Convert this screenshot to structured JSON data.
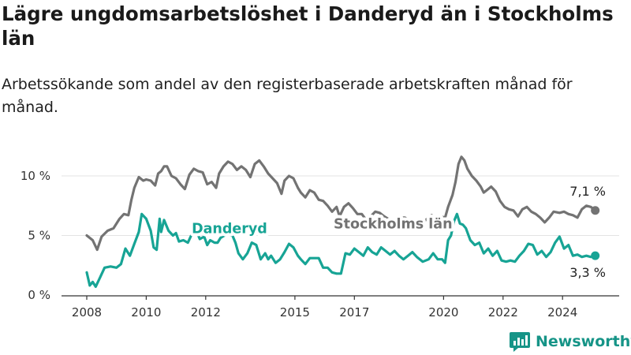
{
  "title": "Lägre ungdomsarbetslöshet i Danderyd än i Stockholms län",
  "subtitle": "Arbetssökande som andel av den registerbaserade arbetskraften månad för månad.",
  "brand": "Newsworthy",
  "colors": {
    "stockholm": "#737373",
    "danderyd": "#17a495",
    "grid": "#e3e3e3",
    "axis": "#333333"
  },
  "chart_data": {
    "type": "line",
    "x_unit": "year",
    "xlim": [
      2008,
      2025.5
    ],
    "ylim": [
      0,
      10
    ],
    "yticks": [
      {
        "v": 0,
        "label": "0 %"
      },
      {
        "v": 5,
        "label": "5 %"
      },
      {
        "v": 10,
        "label": "10 %"
      }
    ],
    "xticks": [
      {
        "v": 2008,
        "label": "2008"
      },
      {
        "v": 2010,
        "label": "2010"
      },
      {
        "v": 2012,
        "label": "2012"
      },
      {
        "v": 2015,
        "label": "2015"
      },
      {
        "v": 2017,
        "label": "2017"
      },
      {
        "v": 2020,
        "label": "2020"
      },
      {
        "v": 2022,
        "label": "2022"
      },
      {
        "v": 2024,
        "label": "2024"
      }
    ],
    "grid": true,
    "series": [
      {
        "name": "Stockholms län",
        "key": "stockholm",
        "end_label": "7,1 %",
        "points": [
          [
            2008.0,
            5.0
          ],
          [
            2008.2,
            4.6
          ],
          [
            2008.35,
            3.8
          ],
          [
            2008.5,
            4.9
          ],
          [
            2008.7,
            5.4
          ],
          [
            2008.9,
            5.6
          ],
          [
            2009.1,
            6.4
          ],
          [
            2009.25,
            6.8
          ],
          [
            2009.4,
            6.7
          ],
          [
            2009.5,
            8.0
          ],
          [
            2009.6,
            9.0
          ],
          [
            2009.75,
            9.9
          ],
          [
            2009.9,
            9.6
          ],
          [
            2010.0,
            9.7
          ],
          [
            2010.15,
            9.6
          ],
          [
            2010.3,
            9.2
          ],
          [
            2010.4,
            10.2
          ],
          [
            2010.5,
            10.4
          ],
          [
            2010.6,
            10.8
          ],
          [
            2010.7,
            10.8
          ],
          [
            2010.85,
            10.0
          ],
          [
            2011.0,
            9.8
          ],
          [
            2011.15,
            9.3
          ],
          [
            2011.3,
            8.9
          ],
          [
            2011.45,
            10.1
          ],
          [
            2011.6,
            10.6
          ],
          [
            2011.75,
            10.4
          ],
          [
            2011.9,
            10.3
          ],
          [
            2012.05,
            9.3
          ],
          [
            2012.2,
            9.5
          ],
          [
            2012.35,
            9.0
          ],
          [
            2012.45,
            10.2
          ],
          [
            2012.6,
            10.8
          ],
          [
            2012.75,
            11.2
          ],
          [
            2012.9,
            11.0
          ],
          [
            2013.05,
            10.5
          ],
          [
            2013.2,
            10.8
          ],
          [
            2013.35,
            10.5
          ],
          [
            2013.5,
            9.9
          ],
          [
            2013.65,
            11.0
          ],
          [
            2013.8,
            11.3
          ],
          [
            2013.95,
            10.8
          ],
          [
            2014.1,
            10.2
          ],
          [
            2014.25,
            9.8
          ],
          [
            2014.4,
            9.4
          ],
          [
            2014.55,
            8.5
          ],
          [
            2014.65,
            9.6
          ],
          [
            2014.8,
            10.0
          ],
          [
            2014.95,
            9.8
          ],
          [
            2015.1,
            9.0
          ],
          [
            2015.2,
            8.6
          ],
          [
            2015.35,
            8.2
          ],
          [
            2015.5,
            8.8
          ],
          [
            2015.65,
            8.6
          ],
          [
            2015.8,
            8.0
          ],
          [
            2015.95,
            7.9
          ],
          [
            2016.1,
            7.5
          ],
          [
            2016.25,
            7.0
          ],
          [
            2016.4,
            7.4
          ],
          [
            2016.5,
            6.6
          ],
          [
            2016.65,
            7.4
          ],
          [
            2016.8,
            7.7
          ],
          [
            2016.95,
            7.3
          ],
          [
            2017.1,
            6.8
          ],
          [
            2017.25,
            6.8
          ],
          [
            2017.4,
            6.3
          ],
          [
            2017.55,
            6.6
          ],
          [
            2017.7,
            7.0
          ],
          [
            2017.85,
            6.9
          ],
          [
            2018.0,
            6.6
          ],
          [
            2018.2,
            6.3
          ],
          [
            2018.4,
            6.0
          ],
          [
            2018.55,
            6.5
          ],
          [
            2018.7,
            6.5
          ],
          [
            2018.85,
            6.3
          ],
          [
            2019.0,
            5.8
          ],
          [
            2019.2,
            6.1
          ],
          [
            2019.4,
            6.3
          ],
          [
            2019.6,
            6.7
          ],
          [
            2019.75,
            6.2
          ],
          [
            2019.9,
            6.6
          ],
          [
            2020.05,
            6.5
          ],
          [
            2020.15,
            7.4
          ],
          [
            2020.3,
            8.4
          ],
          [
            2020.4,
            9.5
          ],
          [
            2020.5,
            11.0
          ],
          [
            2020.6,
            11.6
          ],
          [
            2020.7,
            11.3
          ],
          [
            2020.8,
            10.6
          ],
          [
            2020.95,
            10.0
          ],
          [
            2021.1,
            9.6
          ],
          [
            2021.25,
            9.1
          ],
          [
            2021.35,
            8.6
          ],
          [
            2021.5,
            8.9
          ],
          [
            2021.6,
            9.1
          ],
          [
            2021.75,
            8.7
          ],
          [
            2021.9,
            7.9
          ],
          [
            2022.05,
            7.4
          ],
          [
            2022.2,
            7.2
          ],
          [
            2022.35,
            7.1
          ],
          [
            2022.5,
            6.6
          ],
          [
            2022.65,
            7.2
          ],
          [
            2022.8,
            7.4
          ],
          [
            2022.95,
            7.0
          ],
          [
            2023.1,
            6.8
          ],
          [
            2023.25,
            6.5
          ],
          [
            2023.4,
            6.1
          ],
          [
            2023.55,
            6.5
          ],
          [
            2023.7,
            7.0
          ],
          [
            2023.9,
            6.9
          ],
          [
            2024.05,
            7.0
          ],
          [
            2024.2,
            6.8
          ],
          [
            2024.35,
            6.7
          ],
          [
            2024.5,
            6.5
          ],
          [
            2024.65,
            7.2
          ],
          [
            2024.8,
            7.5
          ],
          [
            2024.95,
            7.4
          ],
          [
            2025.1,
            7.1
          ]
        ]
      },
      {
        "name": "Danderyd",
        "key": "danderyd",
        "end_label": "3,3 %",
        "points": [
          [
            2008.0,
            1.9
          ],
          [
            2008.1,
            0.8
          ],
          [
            2008.2,
            1.1
          ],
          [
            2008.3,
            0.7
          ],
          [
            2008.45,
            1.5
          ],
          [
            2008.6,
            2.3
          ],
          [
            2008.8,
            2.4
          ],
          [
            2009.0,
            2.3
          ],
          [
            2009.15,
            2.6
          ],
          [
            2009.3,
            3.9
          ],
          [
            2009.45,
            3.3
          ],
          [
            2009.6,
            4.3
          ],
          [
            2009.75,
            5.3
          ],
          [
            2009.85,
            6.8
          ],
          [
            2010.0,
            6.4
          ],
          [
            2010.15,
            5.4
          ],
          [
            2010.25,
            4.0
          ],
          [
            2010.35,
            3.8
          ],
          [
            2010.45,
            6.4
          ],
          [
            2010.5,
            5.3
          ],
          [
            2010.6,
            6.3
          ],
          [
            2010.75,
            5.4
          ],
          [
            2010.9,
            5.0
          ],
          [
            2011.0,
            5.2
          ],
          [
            2011.1,
            4.5
          ],
          [
            2011.25,
            4.6
          ],
          [
            2011.4,
            4.4
          ],
          [
            2011.55,
            5.2
          ],
          [
            2011.7,
            5.3
          ],
          [
            2011.8,
            4.7
          ],
          [
            2011.95,
            4.9
          ],
          [
            2012.05,
            4.2
          ],
          [
            2012.15,
            4.6
          ],
          [
            2012.3,
            4.4
          ],
          [
            2012.4,
            4.4
          ],
          [
            2012.5,
            4.8
          ],
          [
            2012.7,
            5.1
          ],
          [
            2012.9,
            5.0
          ],
          [
            2013.0,
            4.4
          ],
          [
            2013.1,
            3.5
          ],
          [
            2013.25,
            3.0
          ],
          [
            2013.4,
            3.5
          ],
          [
            2013.55,
            4.4
          ],
          [
            2013.7,
            4.2
          ],
          [
            2013.85,
            3.0
          ],
          [
            2014.0,
            3.5
          ],
          [
            2014.1,
            3.0
          ],
          [
            2014.2,
            3.3
          ],
          [
            2014.35,
            2.7
          ],
          [
            2014.5,
            3.0
          ],
          [
            2014.65,
            3.6
          ],
          [
            2014.8,
            4.3
          ],
          [
            2014.95,
            4.0
          ],
          [
            2015.1,
            3.3
          ],
          [
            2015.2,
            3.0
          ],
          [
            2015.35,
            2.6
          ],
          [
            2015.5,
            3.1
          ],
          [
            2015.65,
            3.1
          ],
          [
            2015.8,
            3.1
          ],
          [
            2015.95,
            2.3
          ],
          [
            2016.1,
            2.3
          ],
          [
            2016.25,
            1.9
          ],
          [
            2016.4,
            1.8
          ],
          [
            2016.55,
            1.8
          ],
          [
            2016.7,
            3.5
          ],
          [
            2016.85,
            3.4
          ],
          [
            2017.0,
            3.9
          ],
          [
            2017.15,
            3.6
          ],
          [
            2017.3,
            3.3
          ],
          [
            2017.45,
            4.0
          ],
          [
            2017.6,
            3.6
          ],
          [
            2017.75,
            3.4
          ],
          [
            2017.9,
            4.0
          ],
          [
            2018.05,
            3.7
          ],
          [
            2018.2,
            3.4
          ],
          [
            2018.35,
            3.7
          ],
          [
            2018.5,
            3.3
          ],
          [
            2018.65,
            3.0
          ],
          [
            2018.8,
            3.3
          ],
          [
            2018.95,
            3.6
          ],
          [
            2019.1,
            3.2
          ],
          [
            2019.3,
            2.8
          ],
          [
            2019.5,
            3.0
          ],
          [
            2019.65,
            3.5
          ],
          [
            2019.8,
            3.0
          ],
          [
            2019.95,
            3.0
          ],
          [
            2020.05,
            2.7
          ],
          [
            2020.15,
            4.6
          ],
          [
            2020.25,
            5.0
          ],
          [
            2020.35,
            6.2
          ],
          [
            2020.45,
            6.8
          ],
          [
            2020.55,
            6.0
          ],
          [
            2020.65,
            5.9
          ],
          [
            2020.75,
            5.6
          ],
          [
            2020.9,
            4.6
          ],
          [
            2021.05,
            4.2
          ],
          [
            2021.2,
            4.4
          ],
          [
            2021.35,
            3.5
          ],
          [
            2021.5,
            3.9
          ],
          [
            2021.65,
            3.3
          ],
          [
            2021.8,
            3.7
          ],
          [
            2021.95,
            2.9
          ],
          [
            2022.1,
            2.8
          ],
          [
            2022.25,
            2.9
          ],
          [
            2022.4,
            2.8
          ],
          [
            2022.55,
            3.3
          ],
          [
            2022.7,
            3.7
          ],
          [
            2022.85,
            4.3
          ],
          [
            2023.0,
            4.2
          ],
          [
            2023.15,
            3.4
          ],
          [
            2023.3,
            3.7
          ],
          [
            2023.45,
            3.2
          ],
          [
            2023.6,
            3.6
          ],
          [
            2023.75,
            4.4
          ],
          [
            2023.9,
            4.9
          ],
          [
            2024.05,
            3.9
          ],
          [
            2024.2,
            4.2
          ],
          [
            2024.35,
            3.3
          ],
          [
            2024.5,
            3.4
          ],
          [
            2024.65,
            3.2
          ],
          [
            2024.8,
            3.3
          ],
          [
            2024.95,
            3.2
          ],
          [
            2025.1,
            3.3
          ]
        ]
      }
    ],
    "annotations": [
      {
        "text": "Danderyd",
        "series": "danderyd",
        "at": [
          2012.8,
          5.2
        ]
      },
      {
        "text": "Stockholms län",
        "series": "stockholm",
        "at": [
          2018.3,
          5.6
        ]
      }
    ]
  }
}
